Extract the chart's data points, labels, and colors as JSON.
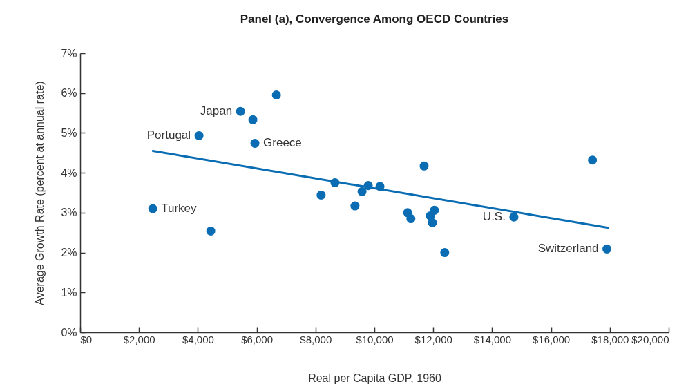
{
  "chart_data": {
    "type": "scatter",
    "title": "Panel (a), Convergence Among OECD Countries",
    "xlabel": "Real per Capita GDP, 1960",
    "ylabel": "Average Growth Rate (percent at annual rate)",
    "xlim": [
      0,
      20000
    ],
    "xticks": [
      {
        "value": 0,
        "label": "$0"
      },
      {
        "value": 2000,
        "label": "$2,000"
      },
      {
        "value": 4000,
        "label": "$4,000"
      },
      {
        "value": 6000,
        "label": "$6,000"
      },
      {
        "value": 8000,
        "label": "$8,000"
      },
      {
        "value": 10000,
        "label": "$10,000"
      },
      {
        "value": 12000,
        "label": "$12,000"
      },
      {
        "value": 14000,
        "label": "$14,000"
      },
      {
        "value": 16000,
        "label": "$16,000"
      },
      {
        "value": 18000,
        "label": "$18,000"
      },
      {
        "value": 20000,
        "label": "$20,000"
      }
    ],
    "ylim": [
      0,
      7
    ],
    "yticks": [
      {
        "value": 0,
        "label": "0%"
      },
      {
        "value": 1,
        "label": "1%"
      },
      {
        "value": 2,
        "label": "2%"
      },
      {
        "value": 3,
        "label": "3%"
      },
      {
        "value": 4,
        "label": "4%"
      },
      {
        "value": 5,
        "label": "5%"
      },
      {
        "value": 6,
        "label": "6%"
      },
      {
        "value": 7,
        "label": "7%"
      }
    ],
    "grid": false,
    "series": [
      {
        "color": "#0a6db3",
        "marker": "circle",
        "x": [
          2470,
          4440,
          4040,
          5450,
          5870,
          5940,
          6670,
          8190,
          8660,
          9340,
          9580,
          9790,
          10190,
          11130,
          11240,
          11690,
          11900,
          12040,
          11970,
          12390,
          14740,
          17410,
          17900
        ],
        "values": [
          3.1,
          2.54,
          4.93,
          5.54,
          5.33,
          4.74,
          5.95,
          3.44,
          3.75,
          3.17,
          3.53,
          3.68,
          3.66,
          3.0,
          2.85,
          4.17,
          2.92,
          3.06,
          2.75,
          2.0,
          2.89,
          4.32,
          2.09
        ]
      },
      {
        "type": "line",
        "color": "#0a6db3",
        "line_style": "solid",
        "x": [
          2470,
          17950
        ],
        "values": [
          4.55,
          2.62
        ]
      }
    ],
    "annotations": [
      {
        "text": "Japan",
        "x": 5450,
        "y": 5.54
      },
      {
        "text": "Portugal",
        "x": 4040,
        "y": 4.93
      },
      {
        "text": "Greece",
        "x": 5940,
        "y": 4.74
      },
      {
        "text": "Turkey",
        "x": 2470,
        "y": 3.1
      },
      {
        "text": "U.S.",
        "x": 14740,
        "y": 2.89
      },
      {
        "text": "Switzerland",
        "x": 17900,
        "y": 2.09
      }
    ]
  }
}
